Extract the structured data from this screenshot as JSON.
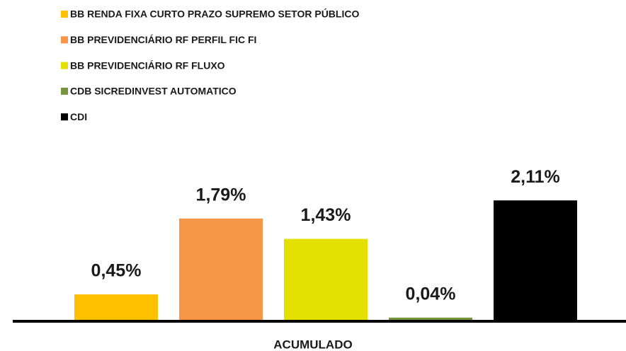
{
  "chart_data": {
    "type": "bar",
    "categories": [
      "ACUMULADO"
    ],
    "series": [
      {
        "name": "BB RENDA FIXA CURTO PRAZO SUPREMO SETOR PÚBLICO",
        "color": "#FFC000",
        "values": [
          0.45
        ],
        "value_labels": [
          "0,45%"
        ]
      },
      {
        "name": "BB PREVIDENCIÁRIO RF PERFIL FIC FI",
        "color": "#F79646",
        "values": [
          1.79
        ],
        "value_labels": [
          "1,79%"
        ]
      },
      {
        "name": "BB PREVIDENCIÁRIO RF FLUXO",
        "color": "#E3DF00",
        "values": [
          1.43
        ],
        "value_labels": [
          "1,43%"
        ]
      },
      {
        "name": "CDB SICREDINVEST AUTOMATICO",
        "color": "#77933C",
        "values": [
          0.04
        ],
        "value_labels": [
          "0,04%"
        ]
      },
      {
        "name": "CDI",
        "color": "#000000",
        "values": [
          2.11
        ],
        "value_labels": [
          "2,11%"
        ]
      }
    ]
  }
}
